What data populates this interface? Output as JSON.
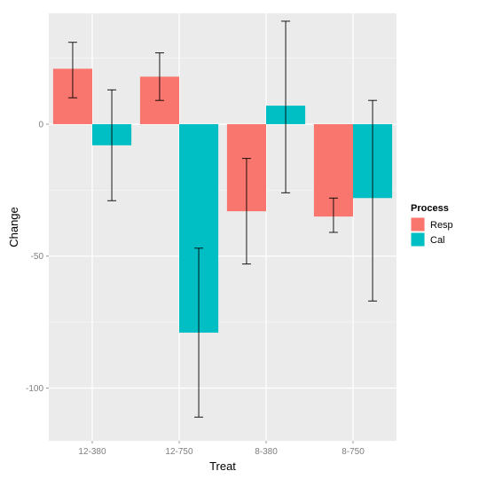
{
  "chart_data": {
    "type": "bar",
    "categories": [
      "12-380",
      "12-750",
      "8-380",
      "8-750"
    ],
    "xlabel": "Treat",
    "ylabel": "Change",
    "ylim": [
      -120,
      42
    ],
    "yticks": [
      0,
      -50,
      -100
    ],
    "grid": true,
    "legend": {
      "title": "Process",
      "placement": "right"
    },
    "series": [
      {
        "name": "Resp",
        "color": "#F8766D",
        "values": [
          21,
          18,
          -33,
          -35
        ],
        "error_low": [
          10,
          9,
          -53,
          -41
        ],
        "error_high": [
          31,
          27,
          -13,
          -28
        ]
      },
      {
        "name": "Cal",
        "color": "#00BFC4",
        "values": [
          -8,
          -79,
          7,
          -28
        ],
        "error_low": [
          -29,
          -111,
          -26,
          -67
        ],
        "error_high": [
          13,
          -47,
          39,
          9
        ]
      }
    ]
  }
}
